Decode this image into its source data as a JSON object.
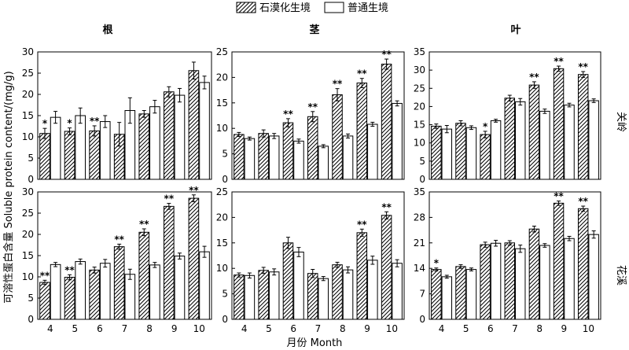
{
  "legend": {
    "series": [
      {
        "name": "石漠化生境",
        "pattern": "hatch"
      },
      {
        "name": "普通生境",
        "pattern": "solid-white"
      }
    ]
  },
  "ylabel": "可溶性蛋白含量 Soluble protein content/(mg/g)",
  "xlabel": "月份 Month",
  "columns": [
    "根",
    "茎",
    "叶"
  ],
  "rows": [
    "关岭",
    "花溪"
  ],
  "colors": {
    "bar_stroke": "#000000",
    "bar_fill_solid": "#ffffff",
    "hatch": "#000000"
  },
  "chart_data": [
    {
      "type": "bar",
      "row": "关岭",
      "column": "根",
      "categories": [
        "4",
        "5",
        "6",
        "7",
        "8",
        "9",
        "10"
      ],
      "ylim": [
        0,
        30
      ],
      "yticks": [
        0,
        5,
        10,
        15,
        20,
        25,
        30
      ],
      "series": [
        {
          "name": "石漠化生境",
          "values": [
            10.8,
            11.3,
            11.4,
            10.6,
            15.4,
            20.6,
            25.6
          ],
          "errors": [
            1.2,
            0.8,
            1.2,
            2.8,
            0.8,
            1.2,
            2.0
          ]
        },
        {
          "name": "普通生境",
          "values": [
            14.6,
            15.0,
            13.6,
            16.2,
            17.1,
            19.8,
            22.8
          ],
          "errors": [
            1.4,
            1.8,
            1.4,
            3.0,
            1.5,
            1.6,
            1.5
          ]
        }
      ],
      "significance": [
        "*",
        "*",
        "**",
        "",
        "",
        "",
        ""
      ]
    },
    {
      "type": "bar",
      "row": "关岭",
      "column": "茎",
      "categories": [
        "4",
        "5",
        "6",
        "7",
        "8",
        "9",
        "10"
      ],
      "ylim": [
        0,
        25
      ],
      "yticks": [
        0,
        5,
        10,
        15,
        20,
        25
      ],
      "series": [
        {
          "name": "石漠化生境",
          "values": [
            8.8,
            9.0,
            11.1,
            12.3,
            16.6,
            18.9,
            22.6
          ],
          "errors": [
            0.4,
            0.7,
            0.8,
            1.0,
            1.2,
            0.9,
            1.0
          ]
        },
        {
          "name": "普通生境",
          "values": [
            8.0,
            8.5,
            7.5,
            6.5,
            8.5,
            10.8,
            14.9
          ],
          "errors": [
            0.3,
            0.5,
            0.4,
            0.3,
            0.4,
            0.4,
            0.5
          ]
        }
      ],
      "significance": [
        "",
        "",
        "**",
        "**",
        "**",
        "**",
        "**"
      ]
    },
    {
      "type": "bar",
      "row": "关岭",
      "column": "叶",
      "categories": [
        "4",
        "5",
        "6",
        "7",
        "8",
        "9",
        "10"
      ],
      "ylim": [
        0,
        35
      ],
      "yticks": [
        0,
        5,
        10,
        15,
        20,
        25,
        30,
        35
      ],
      "series": [
        {
          "name": "石漠化生境",
          "values": [
            14.6,
            15.4,
            12.3,
            22.3,
            25.9,
            30.4,
            28.8
          ],
          "errors": [
            0.6,
            0.7,
            0.9,
            0.8,
            0.9,
            0.7,
            0.8
          ]
        },
        {
          "name": "普通生境",
          "values": [
            13.8,
            14.2,
            16.1,
            21.3,
            18.7,
            20.4,
            21.6
          ],
          "errors": [
            1.0,
            0.5,
            0.4,
            0.9,
            0.6,
            0.5,
            0.5
          ]
        }
      ],
      "significance": [
        "",
        "",
        "*",
        "",
        "**",
        "**",
        "**"
      ]
    },
    {
      "type": "bar",
      "row": "花溪",
      "column": "根",
      "categories": [
        "4",
        "5",
        "6",
        "7",
        "8",
        "9",
        "10"
      ],
      "ylim": [
        0,
        30
      ],
      "yticks": [
        0,
        5,
        10,
        15,
        20,
        25,
        30
      ],
      "series": [
        {
          "name": "石漠化生境",
          "values": [
            8.7,
            9.9,
            11.6,
            17.1,
            20.5,
            26.6,
            28.5
          ],
          "errors": [
            0.5,
            0.6,
            0.7,
            0.6,
            0.8,
            0.7,
            0.8
          ]
        },
        {
          "name": "普通生境",
          "values": [
            12.9,
            13.6,
            13.2,
            10.6,
            12.8,
            14.9,
            15.9
          ],
          "errors": [
            0.5,
            0.6,
            0.9,
            1.2,
            0.6,
            0.7,
            1.3
          ]
        }
      ],
      "significance": [
        "**",
        "**",
        "",
        "**",
        "**",
        "**",
        "**"
      ]
    },
    {
      "type": "bar",
      "row": "花溪",
      "column": "茎",
      "categories": [
        "4",
        "5",
        "6",
        "7",
        "8",
        "9",
        "10"
      ],
      "ylim": [
        0,
        25
      ],
      "yticks": [
        0,
        5,
        10,
        15,
        20,
        25
      ],
      "series": [
        {
          "name": "石漠化生境",
          "values": [
            8.7,
            9.6,
            15.0,
            9.0,
            10.7,
            17.0,
            20.4
          ],
          "errors": [
            0.4,
            0.6,
            1.1,
            0.8,
            0.5,
            0.7,
            0.7
          ]
        },
        {
          "name": "普通生境",
          "values": [
            8.6,
            9.3,
            13.2,
            8.0,
            9.7,
            11.6,
            11.0
          ],
          "errors": [
            0.5,
            0.6,
            0.9,
            0.4,
            0.6,
            0.8,
            0.7
          ]
        }
      ],
      "significance": [
        "",
        "",
        "",
        "",
        "",
        "**",
        "**"
      ]
    },
    {
      "type": "bar",
      "row": "花溪",
      "column": "叶",
      "categories": [
        "4",
        "5",
        "6",
        "7",
        "8",
        "9",
        "10"
      ],
      "ylim": [
        0,
        35
      ],
      "yticks": [
        0,
        7,
        14,
        21,
        28,
        35
      ],
      "series": [
        {
          "name": "石漠化生境",
          "values": [
            13.7,
            14.5,
            20.5,
            21.0,
            24.8,
            31.9,
            30.4
          ],
          "errors": [
            0.4,
            0.5,
            0.7,
            0.6,
            0.8,
            0.6,
            0.7
          ]
        },
        {
          "name": "普通生境",
          "values": [
            11.7,
            13.7,
            20.9,
            19.4,
            20.3,
            22.2,
            23.3
          ],
          "errors": [
            0.4,
            0.4,
            0.8,
            1.0,
            0.5,
            0.6,
            1.0
          ]
        }
      ],
      "significance": [
        "*",
        "",
        "",
        "",
        "",
        "**",
        "**"
      ]
    }
  ]
}
